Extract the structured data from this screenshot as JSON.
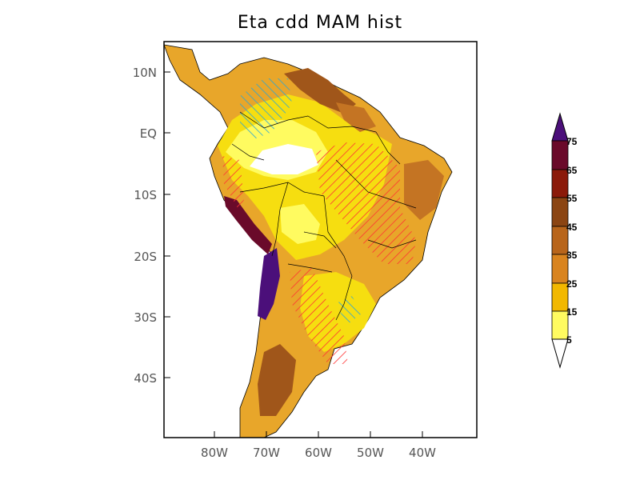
{
  "title": "Eta  cdd MAM hist",
  "map": {
    "region": "South America",
    "lat_ticks": [
      "10N",
      "EQ",
      "10S",
      "20S",
      "30S",
      "40S"
    ],
    "lon_ticks": [
      "80W",
      "70W",
      "60W",
      "50W",
      "40W"
    ]
  },
  "colorbar": {
    "levels": [
      "75",
      "65",
      "55",
      "45",
      "35",
      "25",
      "15",
      "5"
    ],
    "colors": [
      "#4b0f7a",
      "#6a0a2a",
      "#8b1a0a",
      "#8b4513",
      "#b8651b",
      "#d9841f",
      "#f2b800",
      "#f4dd00",
      "#fffb60",
      "#ffffff"
    ],
    "over_color": "#4b0f7a",
    "under_color": "#ffffff"
  },
  "hatch_colors": {
    "positive": "#ff3333",
    "negative": "#33aacc"
  }
}
